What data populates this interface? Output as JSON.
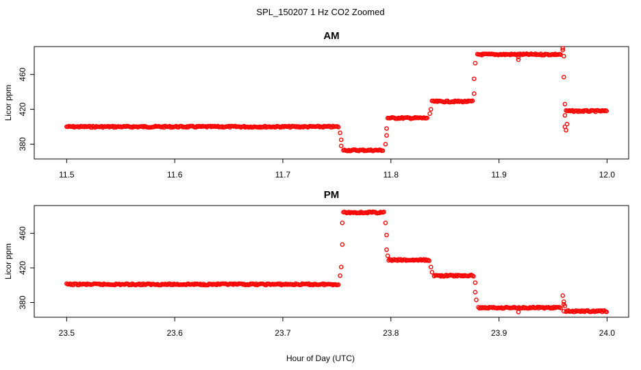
{
  "chart_data": {
    "type": "scatter",
    "title": "SPL_150207  1 Hz CO2 Zoomed",
    "xlabel": "Hour of Day (UTC)",
    "marker_color": "#ff0000",
    "panels": [
      {
        "title": "AM",
        "ylabel": "Licor ppm",
        "xlim": [
          11.47,
          12.02
        ],
        "ylim": [
          363,
          492
        ],
        "x_ticks": [
          "11.5",
          "11.6",
          "11.7",
          "11.8",
          "11.9",
          "12.0"
        ],
        "y_ticks": [
          "380",
          "420",
          "460"
        ],
        "segments": [
          {
            "x_start": 11.5,
            "x_end": 11.752,
            "y": 400
          },
          {
            "x_start": 11.756,
            "x_end": 11.793,
            "y": 373
          },
          {
            "x_start": 11.797,
            "x_end": 11.834,
            "y": 410
          },
          {
            "x_start": 11.838,
            "x_end": 11.876,
            "y": 429
          },
          {
            "x_start": 11.88,
            "x_end": 11.958,
            "y": 483
          },
          {
            "x_start": 11.962,
            "x_end": 12.0,
            "y": 418
          }
        ],
        "transitions": [
          {
            "x": 11.753,
            "y": 393
          },
          {
            "x": 11.754,
            "y": 385
          },
          {
            "x": 11.754,
            "y": 378
          },
          {
            "x": 11.795,
            "y": 380
          },
          {
            "x": 11.796,
            "y": 390
          },
          {
            "x": 11.796,
            "y": 398
          },
          {
            "x": 11.836,
            "y": 415
          },
          {
            "x": 11.837,
            "y": 420
          },
          {
            "x": 11.877,
            "y": 438
          },
          {
            "x": 11.877,
            "y": 455
          },
          {
            "x": 11.878,
            "y": 473
          },
          {
            "x": 11.918,
            "y": 477
          },
          {
            "x": 11.918,
            "y": 480
          },
          {
            "x": 11.959,
            "y": 490
          },
          {
            "x": 11.959,
            "y": 488
          },
          {
            "x": 11.96,
            "y": 481
          },
          {
            "x": 11.96,
            "y": 457
          },
          {
            "x": 11.961,
            "y": 426
          },
          {
            "x": 11.961,
            "y": 413
          },
          {
            "x": 11.961,
            "y": 400
          },
          {
            "x": 11.962,
            "y": 396
          },
          {
            "x": 11.963,
            "y": 403
          }
        ]
      },
      {
        "title": "PM",
        "ylabel": "Licor ppm",
        "xlim": [
          23.47,
          24.02
        ],
        "ylim": [
          363,
          492
        ],
        "x_ticks": [
          "23.5",
          "23.6",
          "23.7",
          "23.8",
          "23.9",
          "24.0"
        ],
        "y_ticks": [
          "380",
          "420",
          "460"
        ],
        "segments": [
          {
            "x_start": 23.5,
            "x_end": 23.752,
            "y": 401
          },
          {
            "x_start": 23.756,
            "x_end": 23.794,
            "y": 484
          },
          {
            "x_start": 23.798,
            "x_end": 23.836,
            "y": 429
          },
          {
            "x_start": 23.84,
            "x_end": 23.877,
            "y": 411
          },
          {
            "x_start": 23.881,
            "x_end": 23.958,
            "y": 374
          },
          {
            "x_start": 23.962,
            "x_end": 24.0,
            "y": 370
          }
        ],
        "transitions": [
          {
            "x": 23.753,
            "y": 411
          },
          {
            "x": 23.754,
            "y": 421
          },
          {
            "x": 23.755,
            "y": 447
          },
          {
            "x": 23.755,
            "y": 472
          },
          {
            "x": 23.795,
            "y": 472
          },
          {
            "x": 23.796,
            "y": 458
          },
          {
            "x": 23.796,
            "y": 441
          },
          {
            "x": 23.797,
            "y": 434
          },
          {
            "x": 23.837,
            "y": 421
          },
          {
            "x": 23.838,
            "y": 415
          },
          {
            "x": 23.878,
            "y": 403
          },
          {
            "x": 23.878,
            "y": 392
          },
          {
            "x": 23.879,
            "y": 383
          },
          {
            "x": 23.918,
            "y": 369
          },
          {
            "x": 23.959,
            "y": 388
          },
          {
            "x": 23.96,
            "y": 381
          },
          {
            "x": 23.96,
            "y": 378
          },
          {
            "x": 23.961,
            "y": 376
          },
          {
            "x": 23.96,
            "y": 370
          }
        ]
      }
    ]
  }
}
